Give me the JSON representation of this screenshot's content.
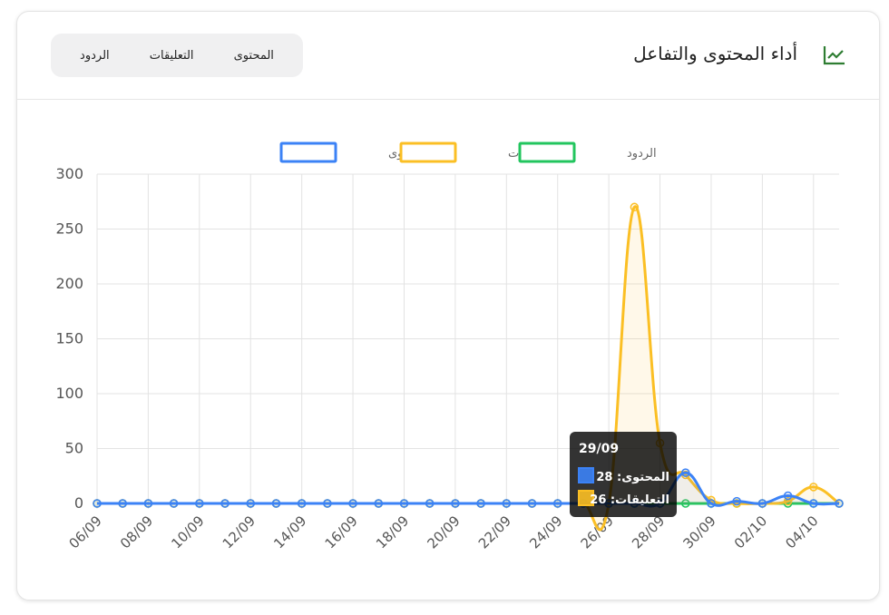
{
  "header": {
    "title": "أداء المحتوى والتفاعل",
    "tabs": [
      "المحتوى",
      "التعليقات",
      "الردود"
    ]
  },
  "chart_data": {
    "type": "line",
    "categories": [
      "06/09",
      null,
      "08/09",
      null,
      "10/09",
      null,
      "12/09",
      null,
      "14/09",
      null,
      "16/09",
      null,
      "18/09",
      null,
      "20/09",
      null,
      "22/09",
      null,
      "24/09",
      null,
      "26/09",
      null,
      "28/09",
      null,
      "30/09",
      null,
      "02/10",
      null,
      "04/10",
      null
    ],
    "series": [
      {
        "name": "المحتوى",
        "color": "#3b82f6",
        "values": [
          0,
          0,
          0,
          0,
          0,
          0,
          0,
          0,
          0,
          0,
          0,
          0,
          0,
          0,
          0,
          0,
          0,
          0,
          0,
          0,
          0,
          0,
          0,
          28,
          0,
          2,
          0,
          7,
          0,
          0
        ]
      },
      {
        "name": "التعليقات",
        "color": "#fbbf24",
        "values": [
          0,
          0,
          0,
          0,
          0,
          0,
          0,
          0,
          0,
          0,
          0,
          0,
          0,
          0,
          0,
          0,
          0,
          0,
          0,
          0,
          0,
          270,
          55,
          26,
          3,
          0,
          0,
          2,
          15,
          0
        ]
      },
      {
        "name": "الردود",
        "color": "#22c55e",
        "values": [
          0,
          0,
          0,
          0,
          0,
          0,
          0,
          0,
          0,
          0,
          0,
          0,
          0,
          0,
          0,
          0,
          0,
          0,
          0,
          0,
          0,
          0,
          0,
          0,
          0,
          0,
          0,
          0,
          0,
          0
        ]
      }
    ],
    "ylim": [
      0,
      300
    ],
    "yticks": [
      0,
      50,
      100,
      150,
      200,
      250,
      300
    ],
    "grid": true,
    "tooltip": {
      "title": "29/09",
      "lines": [
        "المحتوى: 28",
        "التعليقات: 26"
      ]
    }
  }
}
